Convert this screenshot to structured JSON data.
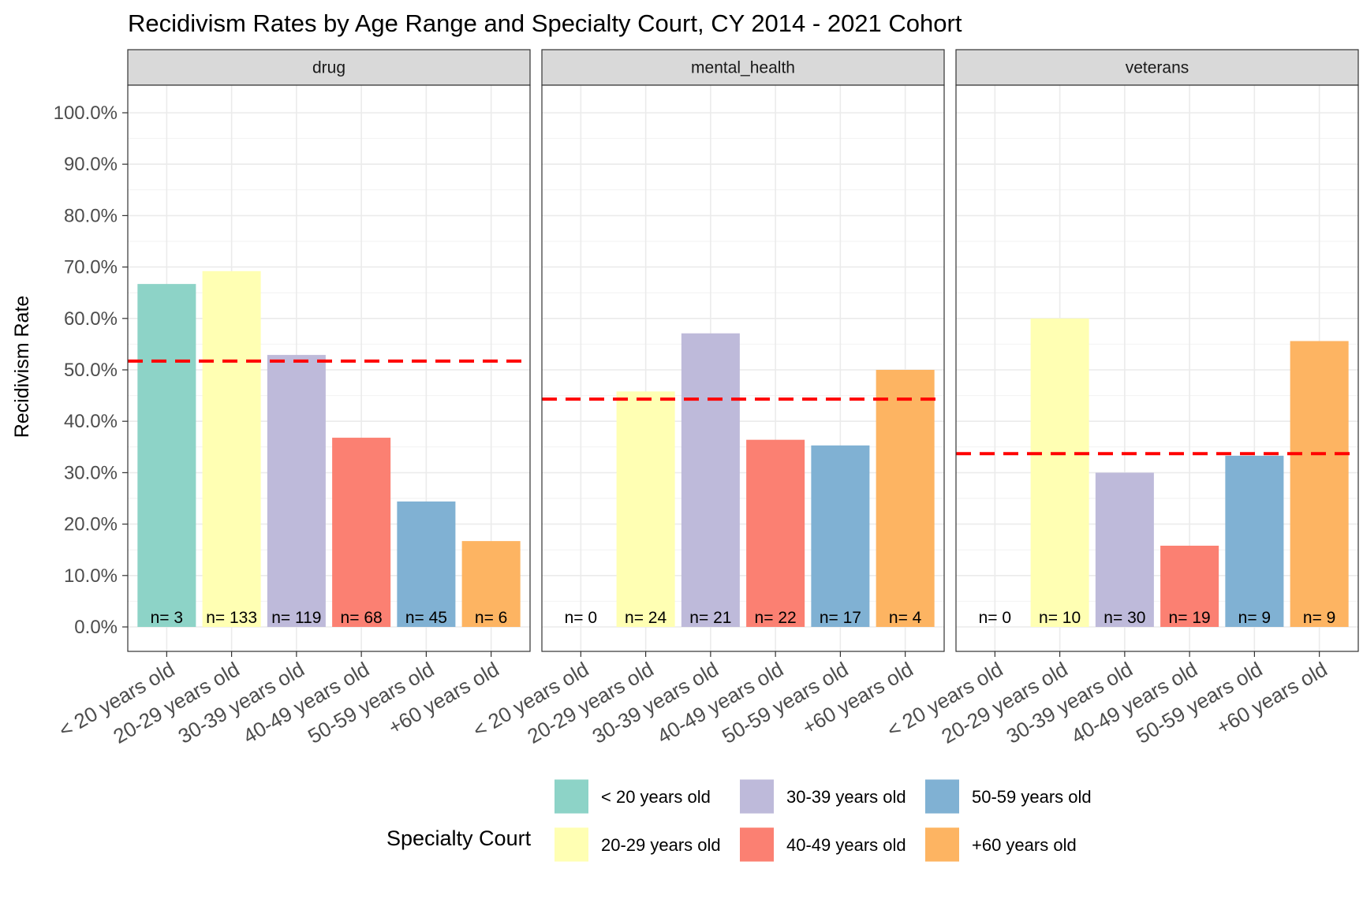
{
  "chart_data": {
    "type": "bar",
    "title": "Recidivism Rates by Age Range and Specialty Court, CY 2014 - 2021 Cohort",
    "ylabel": "Recidivism Rate",
    "xlabel": "",
    "ylim": [
      0,
      100
    ],
    "y_ticks": [
      "0.0%",
      "10.0%",
      "20.0%",
      "30.0%",
      "40.0%",
      "50.0%",
      "60.0%",
      "70.0%",
      "80.0%",
      "90.0%",
      "100.0%"
    ],
    "y_tick_values": [
      0,
      10,
      20,
      30,
      40,
      50,
      60,
      70,
      80,
      90,
      100
    ],
    "categories": [
      "< 20 years old",
      "20-29 years old",
      "30-39 years old",
      "40-49 years old",
      "50-59 years old",
      "+60 years old"
    ],
    "colors": [
      "#8dd3c7",
      "#ffffb3",
      "#bebada",
      "#fb8072",
      "#80b1d3",
      "#fdb462"
    ],
    "reference_line_color": "#ff0000",
    "grid": true,
    "legend": {
      "title": "Specialty Court",
      "placement": "bottom",
      "entries": [
        "< 20 years old",
        "20-29 years old",
        "30-39 years old",
        "40-49 years old",
        "50-59 years old",
        "+60 years old"
      ]
    },
    "panels": [
      {
        "name": "drug",
        "values": [
          66.7,
          69.2,
          52.9,
          36.8,
          24.4,
          16.7
        ],
        "n_labels": [
          "n= 3",
          "n= 133",
          "n= 119",
          "n= 68",
          "n= 45",
          "n= 6"
        ],
        "average": 51.7
      },
      {
        "name": "mental_health",
        "values": [
          0,
          45.8,
          57.1,
          36.4,
          35.3,
          50.0
        ],
        "n_labels": [
          "n= 0",
          "n= 24",
          "n= 21",
          "n= 22",
          "n= 17",
          "n= 4"
        ],
        "average": 44.3
      },
      {
        "name": "veterans",
        "values": [
          0,
          60.0,
          30.0,
          15.8,
          33.3,
          55.6
        ],
        "n_labels": [
          "n= 0",
          "n= 10",
          "n= 30",
          "n= 19",
          "n= 9",
          "n= 9"
        ],
        "average": 33.7
      }
    ]
  }
}
